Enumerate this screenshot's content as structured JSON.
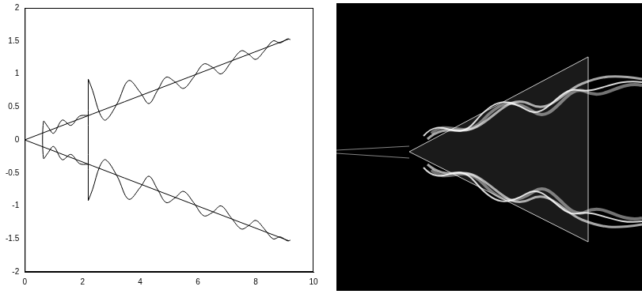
{
  "chart_data": {
    "type": "line",
    "color": "#000000",
    "grid": false,
    "xlim": [
      0,
      10
    ],
    "xticks": [
      0,
      2,
      4,
      6,
      8,
      10
    ],
    "ylim": [
      -2,
      2
    ],
    "yticks": [
      -2,
      -1.5,
      -1,
      -0.5,
      0,
      0.5,
      1,
      1.5,
      2
    ],
    "series": [
      {
        "x": [
          0,
          9.15
        ],
        "values": [
          0,
          1.53
        ]
      },
      {
        "x": [
          0,
          9.15
        ],
        "values": [
          0,
          -1.53
        ]
      },
      {
        "x": [
          2.2,
          1.9,
          1.6,
          1.3,
          1.0,
          0.8,
          0.65,
          0.65,
          0.8,
          1.0,
          1.3,
          1.6,
          1.9,
          2.2
        ],
        "values": [
          0.37,
          0.36,
          0.22,
          0.3,
          0.1,
          0.2,
          0.28,
          -0.28,
          -0.2,
          -0.1,
          -0.3,
          -0.22,
          -0.36,
          -0.37
        ]
      },
      {
        "x": [
          2.2,
          2.35,
          2.6,
          2.8,
          3.2,
          3.6,
          4.0,
          4.3,
          4.6,
          4.9,
          5.2,
          5.5,
          5.85,
          6.2,
          6.5,
          6.8,
          7.15,
          7.5,
          7.75,
          8.0,
          8.3,
          8.6,
          8.85,
          9.1,
          9.2
        ],
        "values": [
          0.92,
          0.75,
          0.4,
          0.3,
          0.55,
          0.9,
          0.72,
          0.55,
          0.75,
          0.95,
          0.88,
          0.78,
          0.95,
          1.15,
          1.1,
          1.0,
          1.18,
          1.35,
          1.3,
          1.22,
          1.35,
          1.5,
          1.47,
          1.53,
          1.52
        ]
      },
      {
        "x": [
          2.2,
          2.35,
          2.6,
          2.8,
          3.2,
          3.6,
          4.0,
          4.3,
          4.6,
          4.9,
          5.2,
          5.5,
          5.85,
          6.2,
          6.5,
          6.8,
          7.15,
          7.5,
          7.75,
          8.0,
          8.3,
          8.6,
          8.85,
          9.1,
          9.2
        ],
        "values": [
          -0.92,
          -0.75,
          -0.4,
          -0.3,
          -0.55,
          -0.9,
          -0.72,
          -0.55,
          -0.75,
          -0.95,
          -0.88,
          -0.78,
          -0.95,
          -1.15,
          -1.1,
          -1.0,
          -1.18,
          -1.35,
          -1.3,
          -1.22,
          -1.35,
          -1.5,
          -1.47,
          -1.53,
          -1.52
        ]
      },
      {
        "x": [
          2.2,
          2.2
        ],
        "values": [
          -0.92,
          0.92
        ]
      }
    ]
  }
}
